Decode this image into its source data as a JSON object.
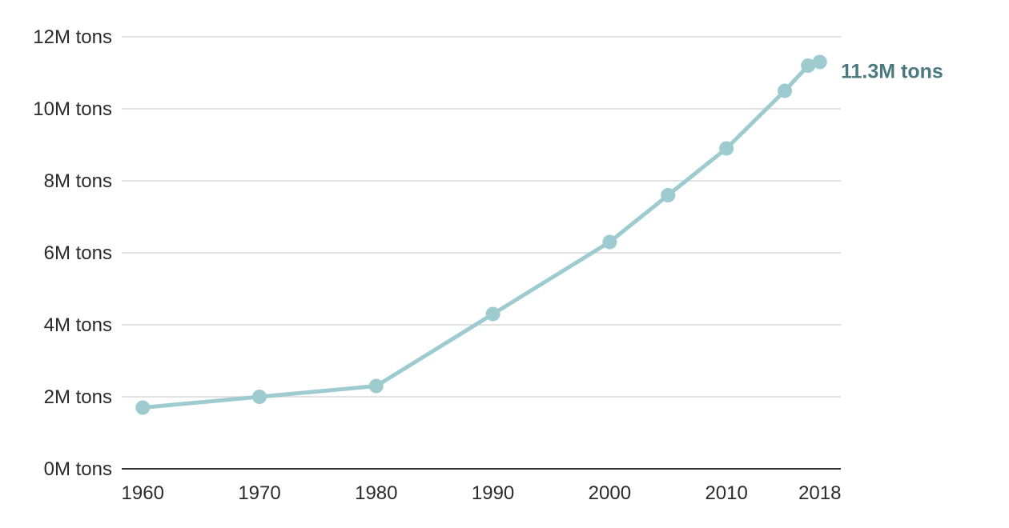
{
  "chart_data": {
    "type": "line",
    "title": "",
    "xlabel": "",
    "ylabel": "",
    "x": [
      1960,
      1970,
      1980,
      1990,
      2000,
      2005,
      2010,
      2015,
      2017,
      2018
    ],
    "series": [
      {
        "values": [
          1.7,
          2.0,
          2.3,
          4.3,
          6.3,
          7.6,
          8.9,
          10.5,
          11.2,
          11.3
        ]
      }
    ],
    "xlim": [
      1958.2,
      2019.8
    ],
    "ylim": [
      0,
      12
    ],
    "x_ticks": [
      1960,
      1970,
      1980,
      1990,
      2000,
      2010,
      2018
    ],
    "x_tick_labels": [
      "1960",
      "1970",
      "1980",
      "1990",
      "2000",
      "2010",
      "2018"
    ],
    "y_ticks": [
      0,
      2,
      4,
      6,
      8,
      10,
      12
    ],
    "y_tick_labels": [
      "0M tons",
      "2M tons",
      "4M tons",
      "6M tons",
      "8M tons",
      "10M tons",
      "12M tons"
    ],
    "end_label": "11.3M  tons",
    "grid": true,
    "legend": "none",
    "colors": {
      "line": "#9ecbd0",
      "end_label": "#4a7a80",
      "grid": "#d9d9d9",
      "axis": "#333333"
    }
  }
}
